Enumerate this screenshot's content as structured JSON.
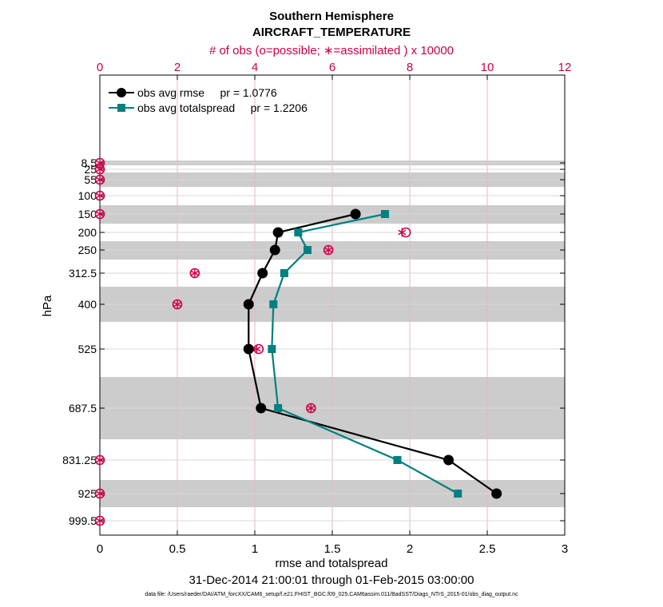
{
  "chart_data": {
    "type": "line",
    "title": "Southern Hemisphere",
    "subtitle": "AIRCRAFT_TEMPERATURE",
    "top_axis_label": "# of obs (o=possible; ∗=assimilated ) x 10000",
    "xlabel": "rmse and totalspread",
    "ylabel": "hPa",
    "date_range": "31-Dec-2014 21:00:01 through 01-Feb-2015 03:00:00",
    "data_file": "data file: /Users/raeder/DAI/ATM_forcXX/CAM6_setup/f.e21.FHIST_BGC.f09_025.CAM6assim.011/BadSST/Diags_NTrS_2015-01/obs_diag_output.nc",
    "xlim": [
      0,
      3
    ],
    "x_ticks": [
      0,
      0.5,
      1,
      1.5,
      2,
      2.5,
      3
    ],
    "x_tick_labels": [
      "0",
      "0.5",
      "1",
      "1.5",
      "2",
      "2.5",
      "3"
    ],
    "top_xlim": [
      0,
      12
    ],
    "top_ticks": [
      0,
      2,
      4,
      6,
      8,
      10,
      12
    ],
    "top_tick_labels": [
      "0",
      "2",
      "4",
      "6",
      "8",
      "10",
      "12"
    ],
    "levels": [
      8.5,
      25,
      55,
      100,
      150,
      200,
      250,
      312.5,
      400,
      525,
      687.5,
      831.25,
      925,
      999.5
    ],
    "level_labels": [
      "8.5",
      "25",
      "55",
      "100",
      "150",
      "200",
      "250",
      "312.5",
      "400",
      "525",
      "687.5",
      "831.25",
      "925",
      "999.5"
    ],
    "shaded_bands_hPa": [
      [
        5,
        12
      ],
      [
        45,
        70
      ],
      [
        125,
        175
      ],
      [
        225,
        275
      ],
      [
        350,
        450
      ],
      [
        600,
        775
      ],
      [
        875,
        975
      ]
    ],
    "series": [
      {
        "name": "obs avg rmse",
        "legend": "obs avg rmse     pr = 1.0776",
        "color": "#000000",
        "marker": "circle",
        "levels": [
          150,
          200,
          250,
          312.5,
          400,
          525,
          687.5,
          831.25,
          925
        ],
        "values": [
          1.65,
          1.15,
          1.13,
          1.05,
          0.96,
          0.96,
          1.04,
          2.25,
          2.56
        ]
      },
      {
        "name": "obs avg totalspread",
        "legend": "obs avg totalspread     pr = 1.2206",
        "color": "#008080",
        "marker": "square",
        "levels": [
          150,
          200,
          250,
          312.5,
          400,
          525,
          687.5,
          831.25,
          925
        ],
        "values": [
          1.84,
          1.28,
          1.34,
          1.19,
          1.12,
          1.11,
          1.15,
          1.92,
          2.31
        ]
      }
    ],
    "obs_count": {
      "color": "#cc0044",
      "levels": [
        8.5,
        25,
        55,
        100,
        150,
        200,
        250,
        312.5,
        400,
        525,
        687.5,
        831.25,
        925,
        999.5
      ],
      "possible": [
        0,
        0,
        0,
        0,
        0,
        7.9,
        5.9,
        2.45,
        2.0,
        4.1,
        5.45,
        0,
        0,
        0
      ],
      "assimilated": [
        0,
        0,
        0,
        0,
        0,
        7.8,
        5.9,
        2.45,
        2.0,
        4.05,
        5.45,
        0,
        0,
        0
      ]
    }
  }
}
